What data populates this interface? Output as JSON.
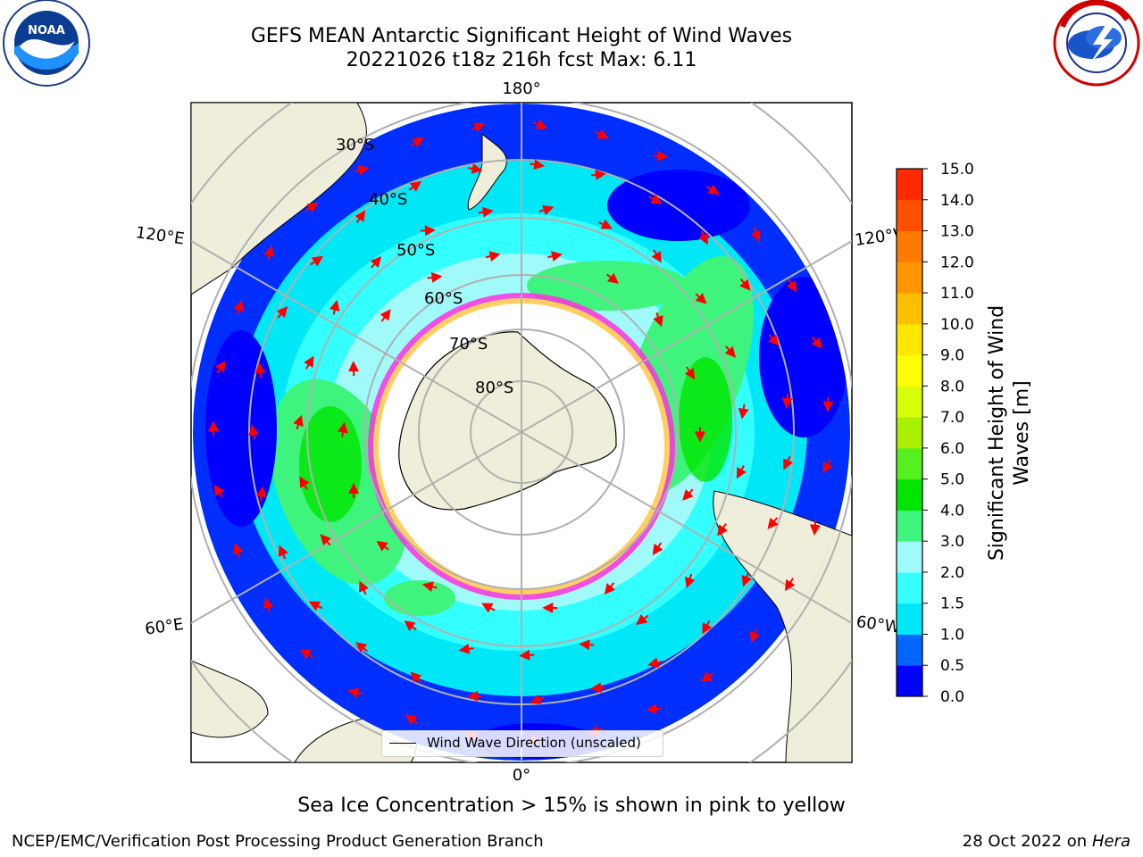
{
  "header": {
    "title_line1": "GEFS MEAN Antarctic Significant Height of Wind Waves",
    "title_line2": "20221026 t18z 216h fcst   Max: 6.11"
  },
  "logos": {
    "left": {
      "name": "NOAA logo",
      "center_text": "NOAA",
      "ring_text": "NATIONAL OCEANIC AND ATMOSPHERIC ADMINISTRATION · U.S. DEPARTMENT OF COMMERCE"
    },
    "right": {
      "name": "National Weather Service logo",
      "ring_text": "NATIONAL WEATHER SERVICE"
    }
  },
  "map": {
    "projection": "south polar stereographic",
    "longitude_labels": {
      "top": "180°",
      "bottom": "0°",
      "upper_left": "120°E",
      "upper_right": "120°W",
      "lower_left": "60°E",
      "lower_right": "60°W"
    },
    "latitude_labels": [
      "30°S",
      "40°S",
      "50°S",
      "60°S",
      "70°S",
      "80°S"
    ],
    "legend_label": "Wind Wave Direction (unscaled)"
  },
  "colorbar": {
    "label_line1": "Significant Height of Wind",
    "label_line2": "Waves [m]",
    "ticks": [
      "0.0",
      "0.5",
      "1.0",
      "1.5",
      "2.0",
      "3.0",
      "4.0",
      "5.0",
      "6.0",
      "7.0",
      "8.0",
      "9.0",
      "10.0",
      "11.0",
      "12.0",
      "13.0",
      "14.0",
      "15.0"
    ],
    "colors": [
      "#0000ff",
      "#0066ff",
      "#00e8f7",
      "#33ffff",
      "#a0fafa",
      "#3ff47d",
      "#00e600",
      "#55f01e",
      "#a8f000",
      "#d7ff0a",
      "#ffff00",
      "#ffe800",
      "#ffbf00",
      "#ff9600",
      "#ff7b00",
      "#ff5000",
      "#ff2a00"
    ]
  },
  "note": "Sea Ice Concentration > 15% is shown in pink to yellow",
  "footer": {
    "left": "NCEP/EMC/Verification Post Processing Product Generation Branch",
    "right_prefix": "28 Oct 2022 on",
    "right_host": "Hera"
  }
}
